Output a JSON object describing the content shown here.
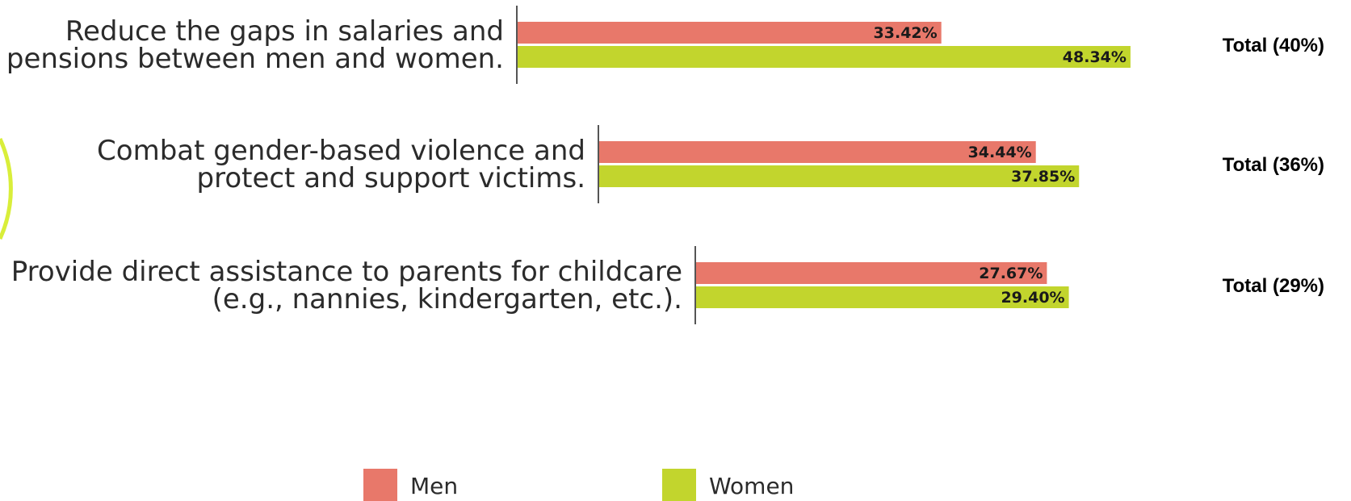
{
  "chart_data": {
    "type": "bar",
    "orientation": "horizontal",
    "categories": [
      "Reduce the gaps in salaries and pensions between men and women.",
      "Combat gender-based violence and protect and support victims.",
      "Provide direct assistance to parents for childcare (e.g., nannies, kindergarten, etc.)."
    ],
    "category_lines": [
      [
        "Reduce the gaps in salaries and",
        "pensions between men and women."
      ],
      [
        "Combat gender-based violence and",
        "protect and support victims."
      ],
      [
        "Provide direct assistance to parents for childcare",
        "(e.g., nannies, kindergarten, etc.)."
      ]
    ],
    "series": [
      {
        "name": "Men",
        "color": "#e8786a",
        "values": [
          33.42,
          34.44,
          27.67
        ],
        "labels": [
          "33.42%",
          "34.44%",
          "27.67%"
        ]
      },
      {
        "name": "Women",
        "color": "#c2d52d",
        "values": [
          48.34,
          37.85,
          29.4
        ],
        "labels": [
          "48.34%",
          "37.85%",
          "29.40%"
        ]
      }
    ],
    "totals": [
      "Total (40%)",
      "Total (36%)",
      "Total (29%)"
    ],
    "legend": {
      "position": "bottom",
      "entries": [
        "Men",
        "Women"
      ]
    },
    "grid": false,
    "title": "",
    "xlabel": "",
    "ylabel": ""
  }
}
